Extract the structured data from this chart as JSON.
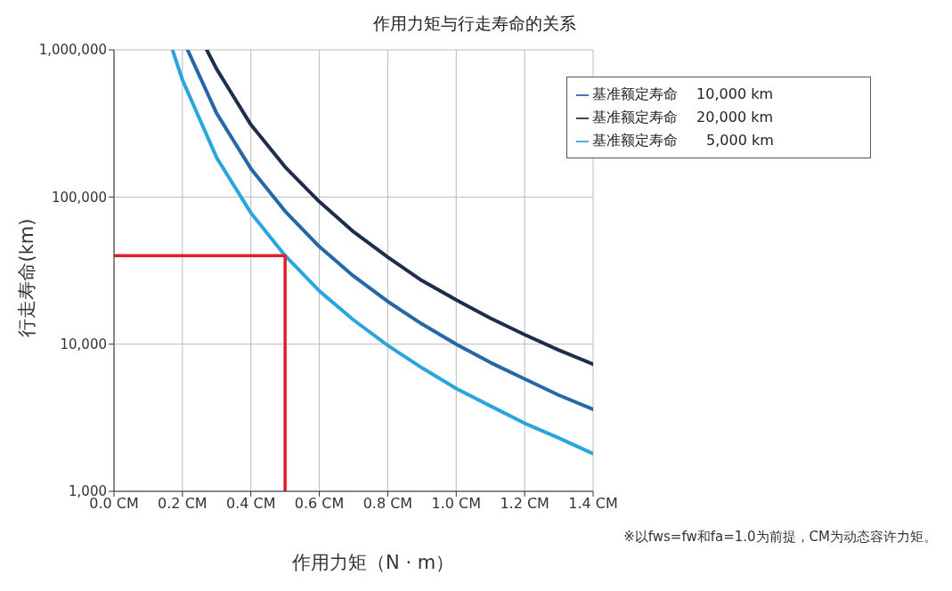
{
  "chart_data": {
    "type": "line",
    "title": "作用力矩与行走寿命的关系",
    "xlabel": "作用力矩（N · m）",
    "ylabel": "行走寿命(km)",
    "annotations": [
      "※以fws=fw和fa=1.0为前提，CM为动态容许力矩。"
    ],
    "log": "y",
    "grid": true,
    "legend": "top right",
    "marker": "none",
    "line_style": "solid",
    "xlim": [
      0,
      1.4
    ],
    "xticks": [
      {
        "value": 0,
        "label": "0.0 CM"
      },
      {
        "value": 0.2,
        "label": "0.2 CM"
      },
      {
        "value": 0.4,
        "label": "0.4 CM"
      },
      {
        "value": 0.6,
        "label": "0.6 CM"
      },
      {
        "value": 0.8,
        "label": "0.8 CM"
      },
      {
        "value": 1.0,
        "label": "1.0 CM"
      },
      {
        "value": 1.2,
        "label": "1.2 CM"
      },
      {
        "value": 1.4,
        "label": "1.4 CM"
      }
    ],
    "ylim": [
      1000,
      1000000
    ],
    "yticks": [
      {
        "value": 1000,
        "label": "1,000"
      },
      {
        "value": 10000,
        "label": "10,000"
      },
      {
        "value": 100000,
        "label": "100,000"
      },
      {
        "value": 1000000,
        "label": "1,000,000"
      }
    ],
    "series": [
      {
        "name": "基准额定寿命　 20,000 km",
        "color": "#1f2d4d",
        "x": [
          0.271,
          0.3,
          0.4,
          0.5,
          0.6,
          0.7,
          0.8,
          0.9,
          1.0,
          1.1,
          1.2,
          1.3,
          1.4
        ],
        "values": [
          1000000,
          740000,
          310000,
          160000,
          93000,
          58000,
          39000,
          27000,
          20000,
          15000,
          11600,
          9100,
          7300
        ]
      },
      {
        "name": "基准额定寿命　 10,000 km",
        "color": "#2667a8",
        "x": [
          0.215,
          0.3,
          0.4,
          0.5,
          0.6,
          0.7,
          0.8,
          0.9,
          1.0,
          1.1,
          1.2,
          1.3,
          1.4
        ],
        "values": [
          1000000,
          370000,
          156000,
          80000,
          46000,
          29000,
          19500,
          13700,
          10000,
          7500,
          5800,
          4500,
          3600
        ]
      },
      {
        "name": "基准额定寿命　　5,000 km",
        "color": "#2aa6dc",
        "x": [
          0.171,
          0.2,
          0.3,
          0.4,
          0.5,
          0.6,
          0.7,
          0.8,
          0.9,
          1.0,
          1.1,
          1.2,
          1.3,
          1.4
        ],
        "values": [
          1000000,
          625000,
          185000,
          78000,
          40000,
          23000,
          14600,
          9800,
          6900,
          5000,
          3800,
          2900,
          2300,
          1800
        ]
      },
      {
        "color": "#e0202a",
        "x": [
          0,
          0.5,
          0.5
        ],
        "values": [
          40000,
          40000,
          1000
        ]
      }
    ]
  }
}
